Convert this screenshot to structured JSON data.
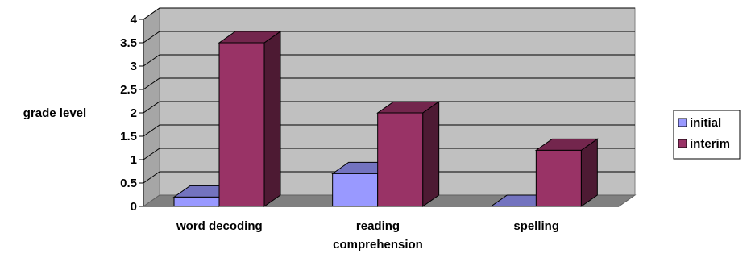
{
  "chart_data": {
    "type": "bar",
    "style": "3d-clustered-column",
    "ylabel": "grade level",
    "xlabel": "",
    "title": "",
    "ylim": [
      0,
      4
    ],
    "yticks": [
      "0",
      "0.5",
      "1",
      "1.5",
      "2",
      "2.5",
      "3",
      "3.5",
      "4"
    ],
    "categories": [
      [
        "word decoding"
      ],
      [
        "reading",
        "comprehension"
      ],
      [
        "spelling"
      ]
    ],
    "series": [
      {
        "name": "initial",
        "values": [
          0.2,
          0.7,
          0.0
        ],
        "color": "#9999ff"
      },
      {
        "name": "interim",
        "values": [
          3.5,
          2.0,
          1.2
        ],
        "color": "#993366"
      }
    ],
    "grid": true,
    "legend": "right",
    "plot_background": "#c0c0c0"
  }
}
